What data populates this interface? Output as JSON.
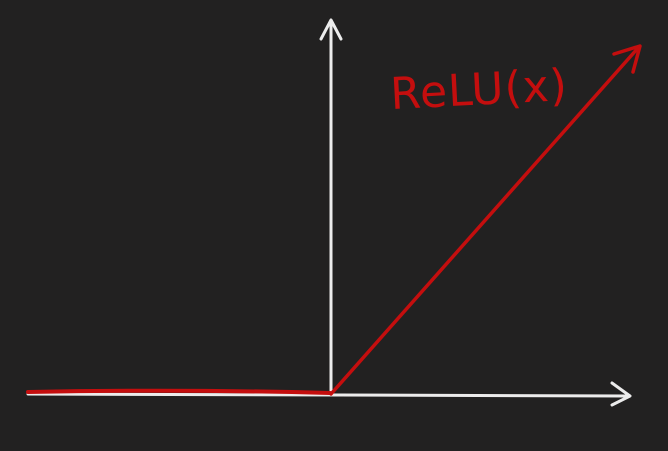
{
  "diagram": {
    "function_label": "ReLU(x)",
    "colors": {
      "background": "#222121",
      "axes": "#ECECEC",
      "curve": "#C40E0E"
    }
  }
}
